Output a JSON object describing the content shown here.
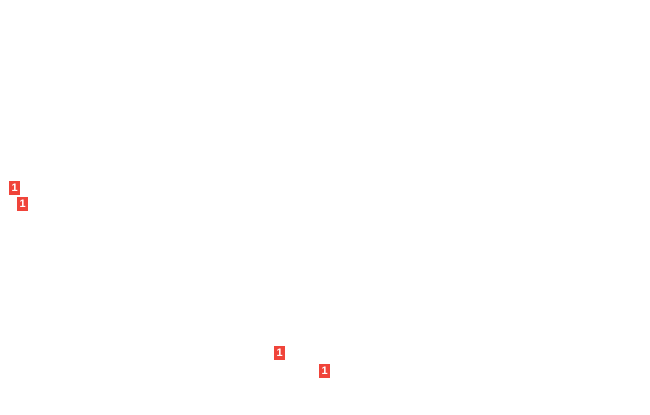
{
  "colors": {
    "badge": "#f0443a",
    "badge_text": "#ffffff",
    "background": "#ffffff"
  },
  "badges": [
    {
      "count": "1"
    },
    {
      "count": "1"
    },
    {
      "count": "1"
    },
    {
      "count": "1"
    }
  ]
}
